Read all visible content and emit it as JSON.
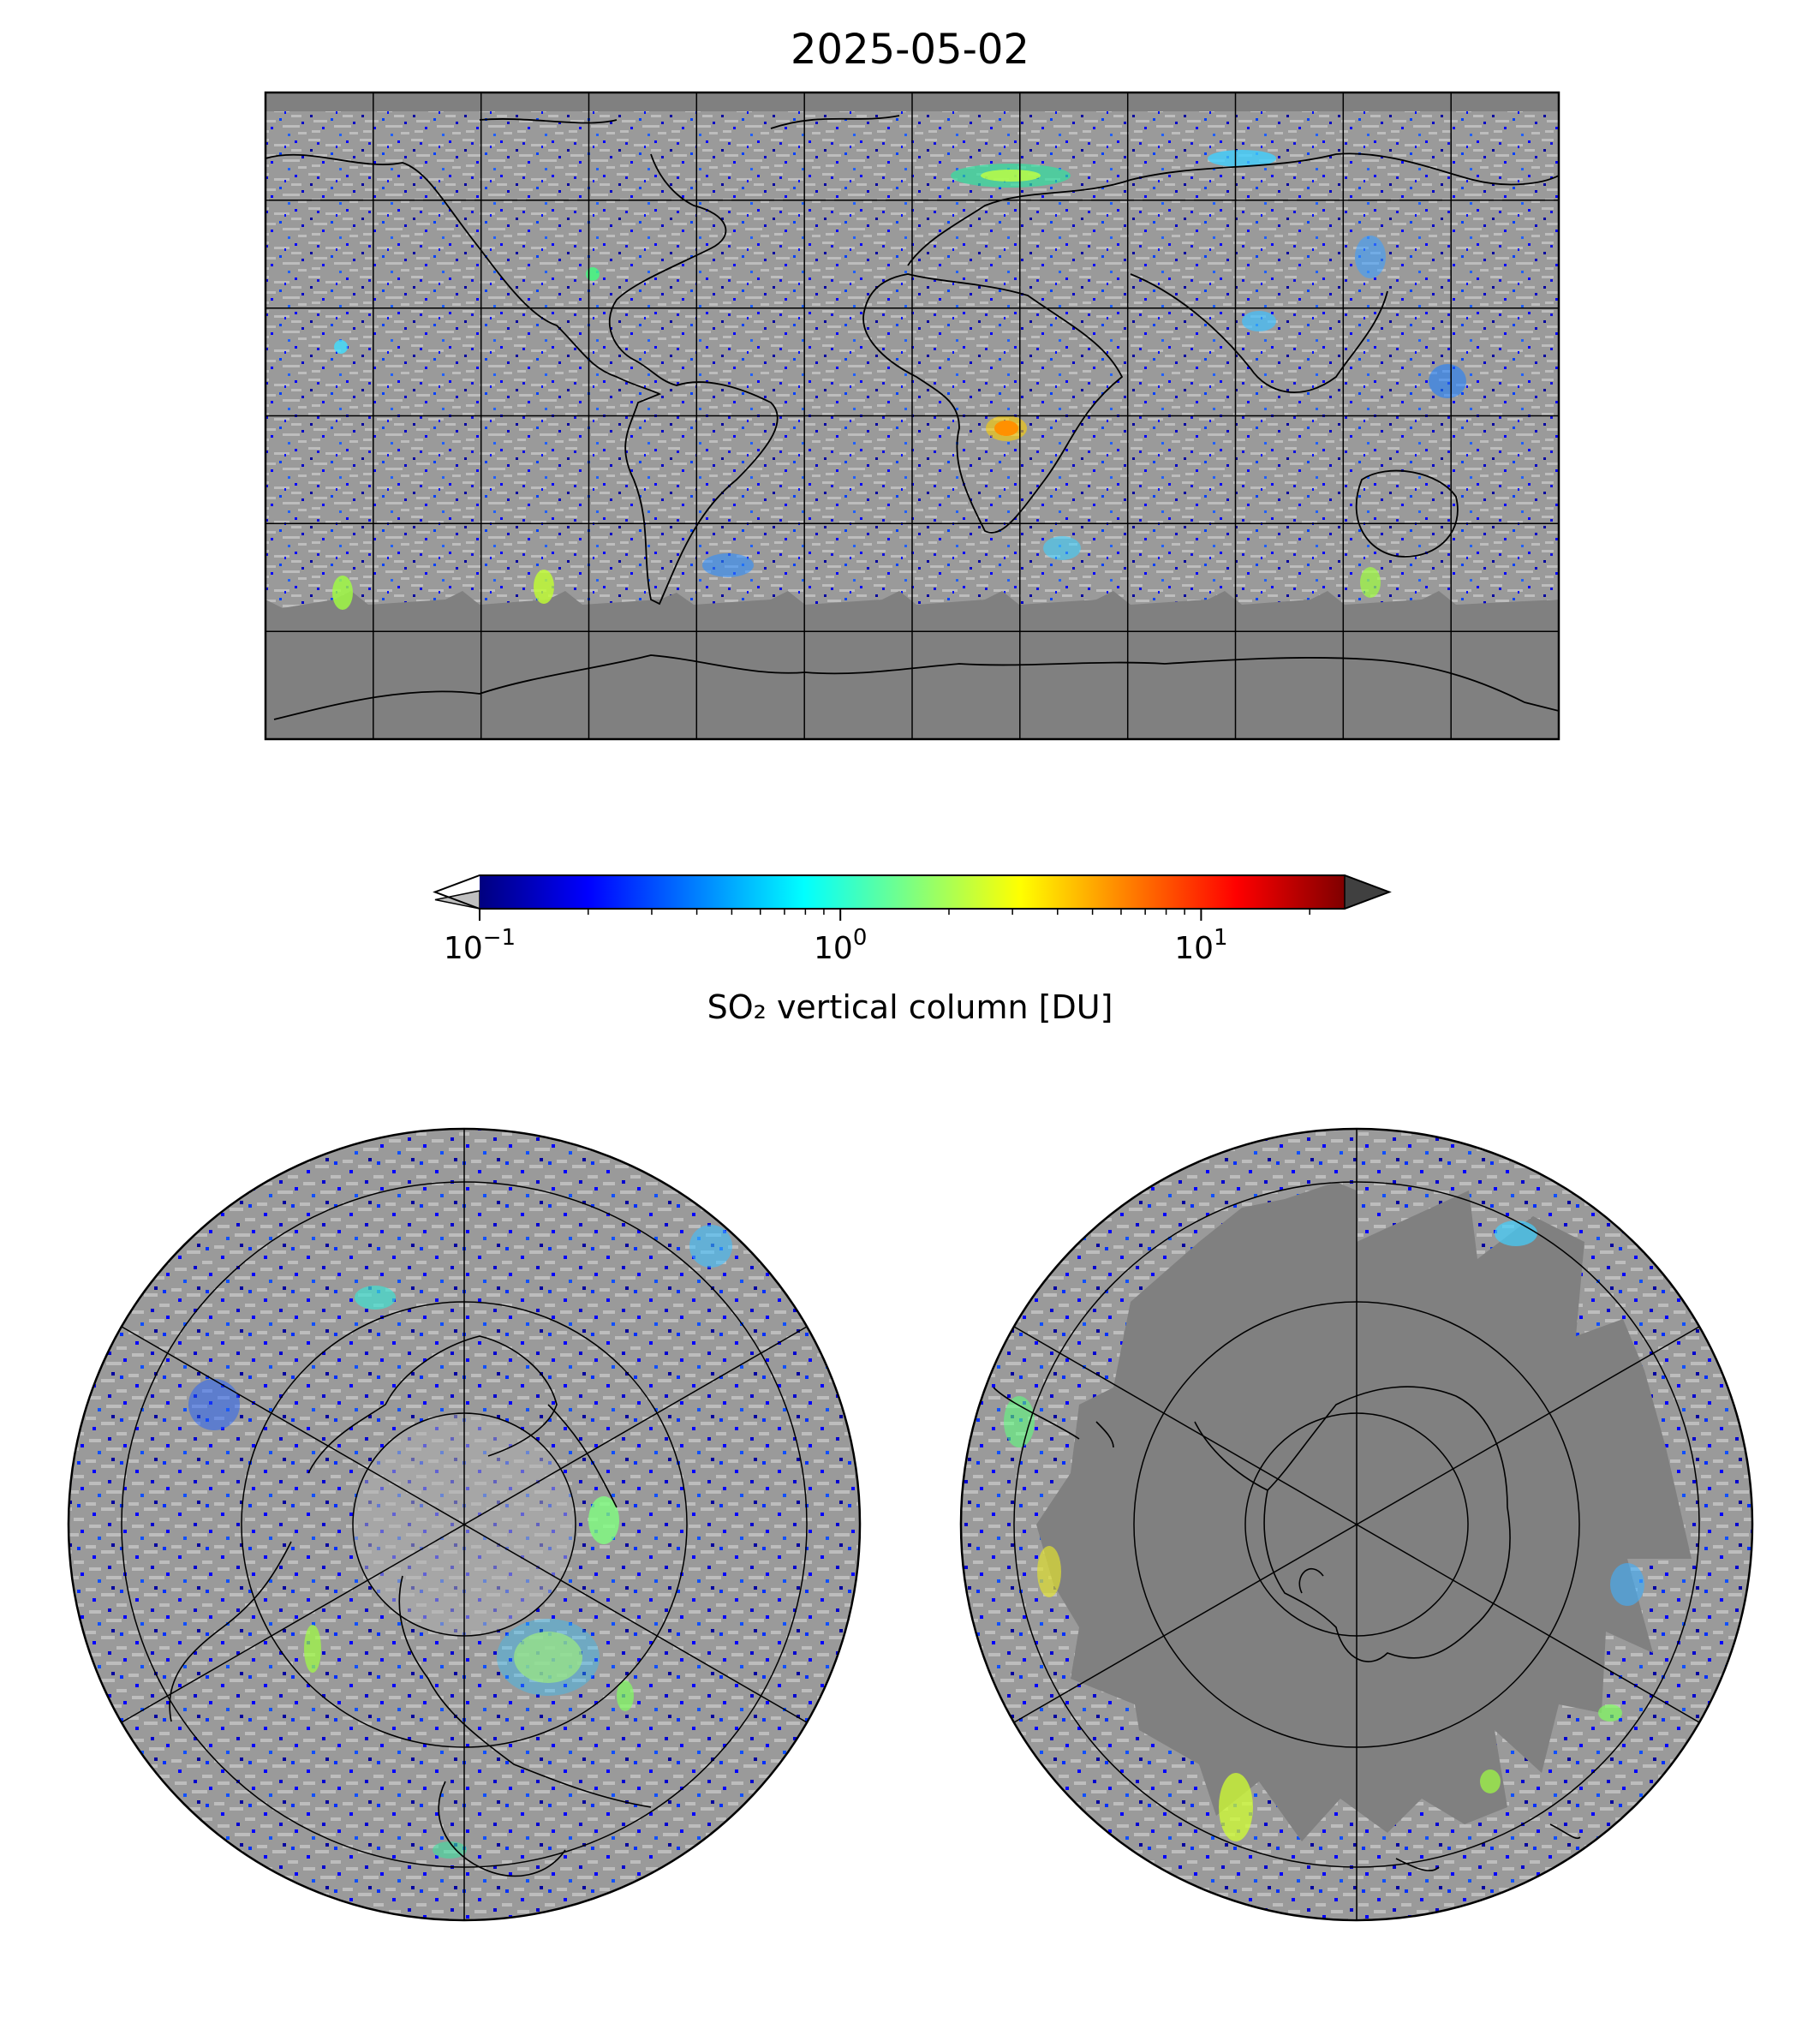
{
  "title": "2025-05-02",
  "colorbar": {
    "label": "SO₂ vertical column [DU]",
    "scale": "log",
    "range": [
      0.1,
      25
    ],
    "extend": "both",
    "colormap": "jet",
    "under_color": "#c0c0c0",
    "over_color": "#404040",
    "ticks": [
      {
        "value": 0.1,
        "base": "10",
        "exp": "−1"
      },
      {
        "value": 1,
        "base": "10",
        "exp": "0"
      },
      {
        "value": 10,
        "base": "10",
        "exp": "1"
      }
    ],
    "stops": [
      "#00007f",
      "#0000ff",
      "#007fff",
      "#00ffff",
      "#7fff7f",
      "#ffff00",
      "#ff7f00",
      "#ff0000",
      "#7f0000"
    ]
  },
  "colors": {
    "no_data": "#808080",
    "low_value": "#bdbdbd",
    "coastline": "#000000",
    "gridline": "#000000"
  },
  "maps": {
    "global": {
      "projection": "PlateCarree",
      "lon_grid_step": 30,
      "lat_grid_step": 30
    },
    "north_polar": {
      "projection": "NorthPolarStereo",
      "meridians_deg": [
        0,
        60,
        120,
        180,
        240,
        300
      ],
      "parallels": 4
    },
    "south_polar": {
      "projection": "SouthPolarStereo",
      "meridians_deg": [
        0,
        60,
        120,
        180,
        240,
        300
      ],
      "parallels": 4
    }
  }
}
